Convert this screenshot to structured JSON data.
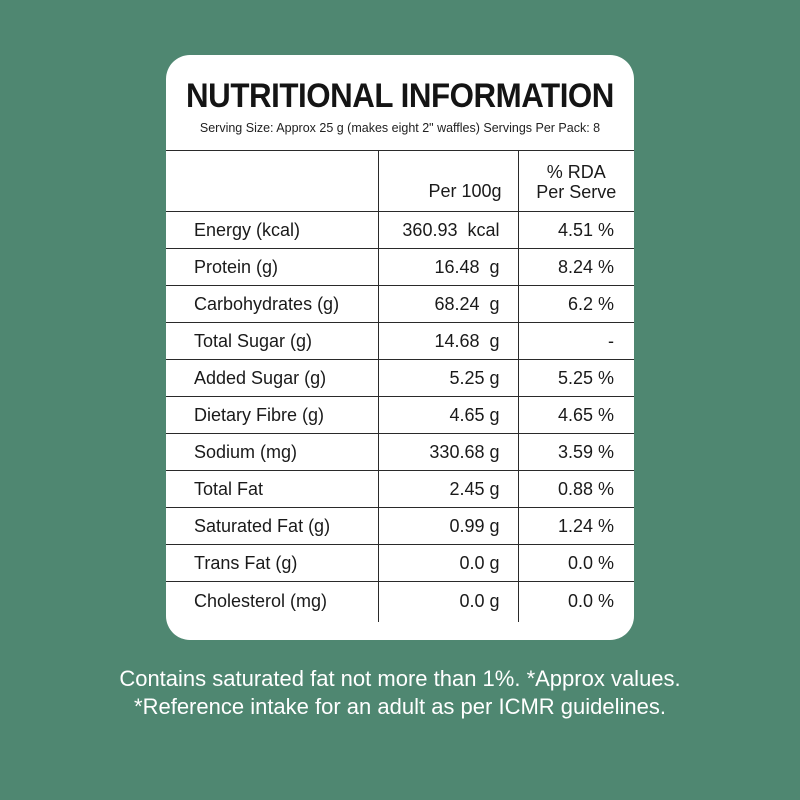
{
  "label": {
    "title": "NUTRITIONAL INFORMATION",
    "serving": "Serving Size: Approx 25 g (makes eight 2\" waffles) Servings Per Pack: 8",
    "columns": {
      "nutrient": "",
      "per_100g": "Per 100g",
      "rda_line1": "% RDA",
      "rda_line2": "Per Serve"
    },
    "rows": [
      {
        "name": "Energy (kcal)",
        "per_100g": "360.93  kcal",
        "rda": "4.51 %"
      },
      {
        "name": "Protein (g)",
        "per_100g": "16.48  g",
        "rda": "8.24 %"
      },
      {
        "name": "Carbohydrates (g)",
        "per_100g": "68.24  g",
        "rda": "6.2 %"
      },
      {
        "name": "Total Sugar (g)",
        "per_100g": "14.68  g",
        "rda": "-"
      },
      {
        "name": "Added Sugar (g)",
        "per_100g": "5.25 g",
        "rda": "5.25 %"
      },
      {
        "name": "Dietary Fibre (g)",
        "per_100g": "4.65 g",
        "rda": "4.65 %"
      },
      {
        "name": "Sodium (mg)",
        "per_100g": "330.68 g",
        "rda": "3.59 %"
      },
      {
        "name": "Total Fat",
        "per_100g": "2.45 g",
        "rda": "0.88 %"
      },
      {
        "name": "Saturated Fat (g)",
        "per_100g": "0.99 g",
        "rda": "1.24 %"
      },
      {
        "name": "Trans Fat (g)",
        "per_100g": "0.0 g",
        "rda": "0.0 %"
      },
      {
        "name": "Cholesterol (mg)",
        "per_100g": "0.0 g",
        "rda": "0.0 %"
      }
    ]
  },
  "footnotes": {
    "line1": "Contains saturated fat not more than 1%. *Approx values.",
    "line2": "*Reference intake for an adult as per ICMR guidelines."
  },
  "colors": {
    "background": "#4f8771",
    "card": "#ffffff",
    "text": "#1a1a1a"
  }
}
